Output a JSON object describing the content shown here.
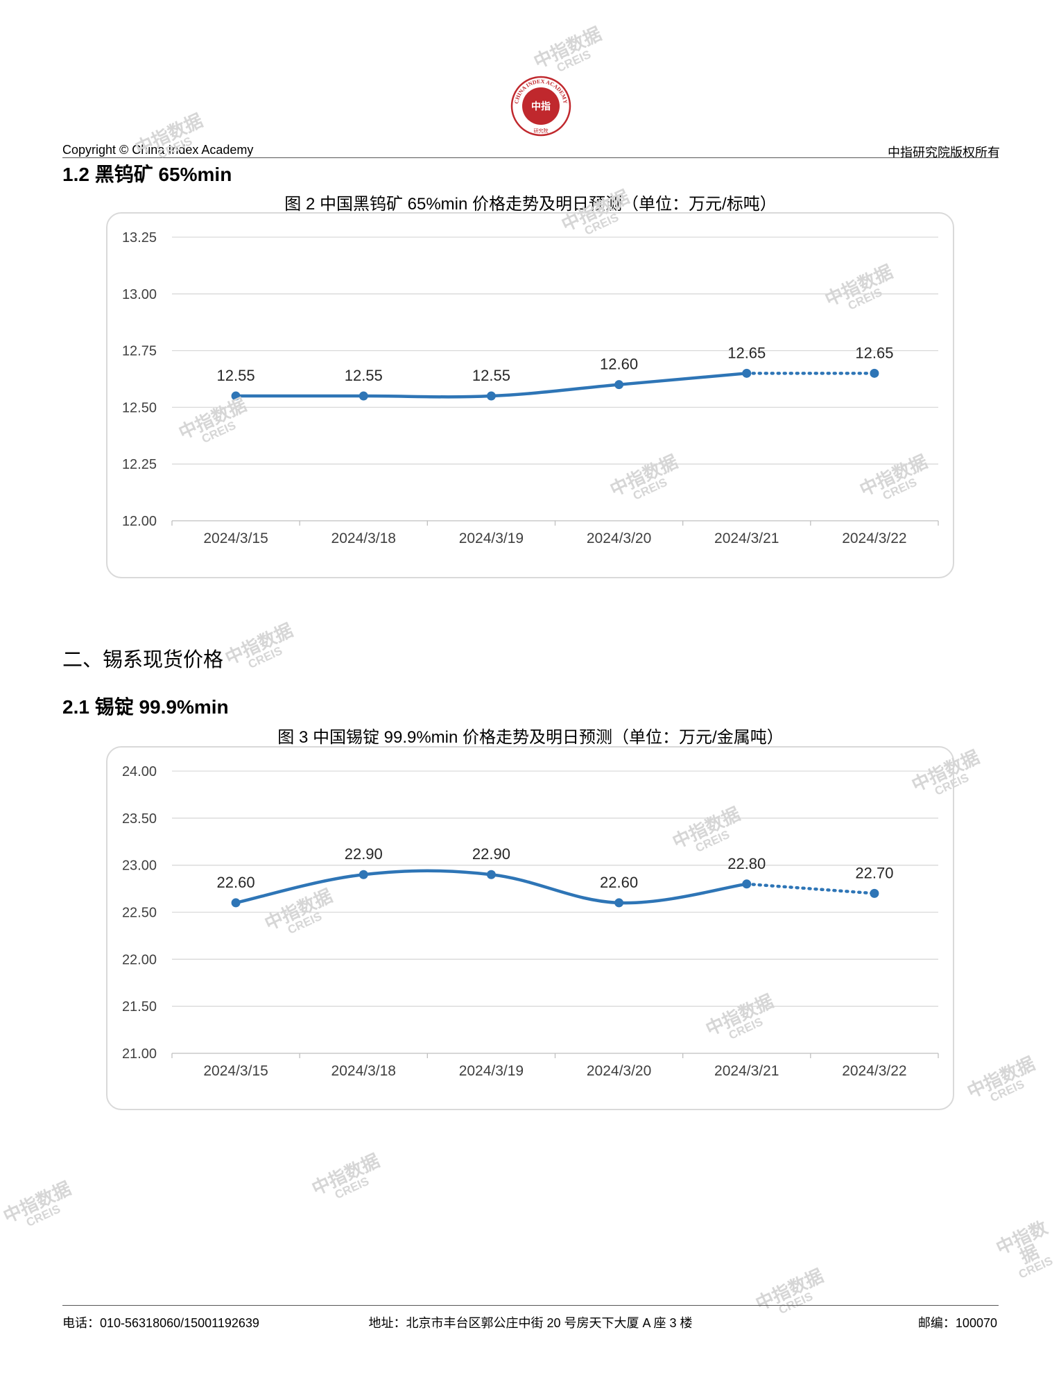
{
  "header": {
    "logo_text": "CHINA INDEX ACADEMY",
    "logo_center": "中指",
    "logo_bottom": "研究院",
    "copyright": "Copyright © China Index Academy",
    "rights": "中指研究院版权所有"
  },
  "sections": {
    "s12_heading": "1.2 黑钨矿 65%min",
    "fig2_caption": "图 2 中国黑钨矿 65%min 价格走势及明日预测（单位：万元/标吨）",
    "s2_heading": "二、锡系现货价格",
    "s21_heading": "2.1 锡锭 99.9%min",
    "fig3_caption": "图 3 中国锡锭 99.9%min 价格走势及明日预测（单位：万元/金属吨）"
  },
  "watermark": {
    "line1": "中指数据",
    "line2": "CREIS"
  },
  "footer": {
    "phone": "电话：010-56318060/15001192639",
    "address": "地址：北京市丰台区郭公庄中街 20 号房天下大厦 A 座 3 楼",
    "zip": "邮编：100070"
  },
  "chart_data": [
    {
      "type": "line",
      "categories": [
        "2024/3/15",
        "2024/3/18",
        "2024/3/19",
        "2024/3/20",
        "2024/3/21",
        "2024/3/22"
      ],
      "values": [
        12.55,
        12.55,
        12.55,
        12.6,
        12.65,
        12.65
      ],
      "labels": [
        "12.55",
        "12.55",
        "12.55",
        "12.60",
        "12.65",
        "12.65"
      ],
      "yticks": [
        "12.00",
        "12.25",
        "12.50",
        "12.75",
        "13.00",
        "13.25"
      ],
      "ylim": [
        12.0,
        13.25
      ],
      "forecast_from_index": 4,
      "grid": true,
      "color": "#2e75b6"
    },
    {
      "type": "line",
      "categories": [
        "2024/3/15",
        "2024/3/18",
        "2024/3/19",
        "2024/3/20",
        "2024/3/21",
        "2024/3/22"
      ],
      "values": [
        22.6,
        22.9,
        22.9,
        22.6,
        22.8,
        22.7
      ],
      "labels": [
        "22.60",
        "22.90",
        "22.90",
        "22.60",
        "22.80",
        "22.70"
      ],
      "yticks": [
        "21.00",
        "21.50",
        "22.00",
        "22.50",
        "23.00",
        "23.50",
        "24.00"
      ],
      "ylim": [
        21.0,
        24.0
      ],
      "forecast_from_index": 4,
      "grid": true,
      "color": "#2e75b6"
    }
  ]
}
